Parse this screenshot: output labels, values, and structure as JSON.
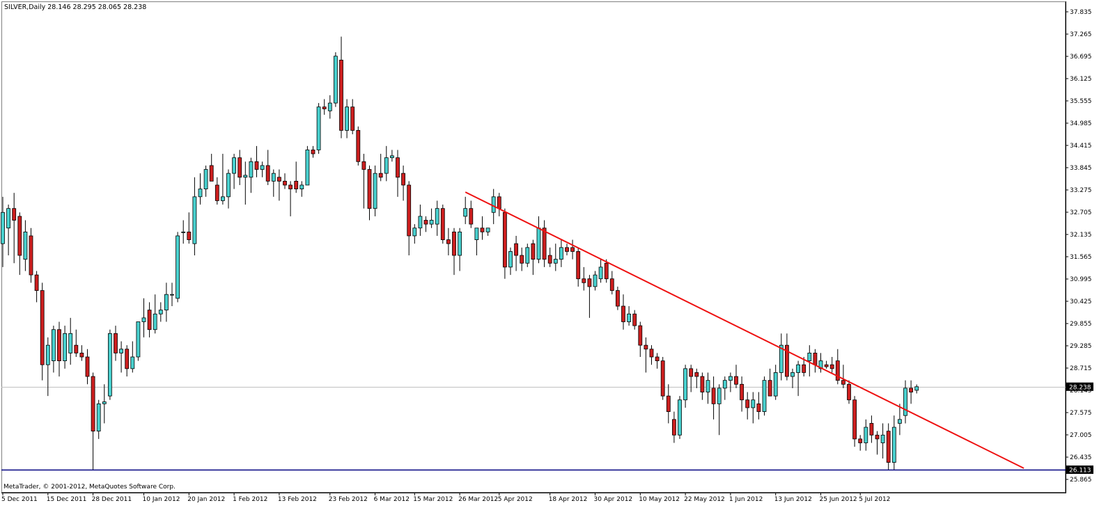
{
  "window": {
    "symbol_line": "SILVER,Daily  28.146 28.295 28.065 28.238",
    "copyright": "MetaTrader, © 2001-2012, MetaQuotes Software Corp."
  },
  "colors": {
    "background": "#ffffff",
    "bull_body": "#49d1cf",
    "bear_body": "#cc1f1f",
    "wick": "#000000",
    "trendline": "#ee1111",
    "support_line": "#000080",
    "bid_line": "#c0c0c0",
    "price_label_bg": "#000000",
    "price_label_text": "#ffffff"
  },
  "chart_data": {
    "type": "candlestick",
    "symbol": "SILVER",
    "timeframe": "Daily",
    "last_bar": {
      "open": 28.146,
      "high": 28.295,
      "low": 28.065,
      "close": 28.238
    },
    "ylim": [
      25.865,
      37.97
    ],
    "y_ticks": [
      "37.835",
      "37.265",
      "36.695",
      "36.125",
      "35.555",
      "34.985",
      "34.415",
      "33.845",
      "33.275",
      "32.705",
      "32.135",
      "31.565",
      "30.995",
      "30.425",
      "29.855",
      "29.285",
      "28.715",
      "28.145",
      "27.575",
      "27.005",
      "26.435",
      "25.865"
    ],
    "x_tick_labels": [
      "5 Dec 2011",
      "15 Dec 2011",
      "28 Dec 2011",
      "10 Jan 2012",
      "20 Jan 2012",
      "1 Feb 2012",
      "13 Feb 2012",
      "23 Feb 2012",
      "6 Mar 2012",
      "15 Mar 2012",
      "26 Mar 2012",
      "5 Apr 2012",
      "18 Apr 2012",
      "30 Apr 2012",
      "10 May 2012",
      "22 May 2012",
      "1 Jun 2012",
      "13 Jun 2012",
      "25 Jun 2012",
      "5 Jul 2012"
    ],
    "x_tick_bar_index": [
      0,
      8,
      16,
      25,
      33,
      41,
      49,
      58,
      66,
      73,
      81,
      88,
      97,
      105,
      113,
      121,
      129,
      137,
      145,
      152
    ],
    "current_price": {
      "value": 28.238,
      "label": "28.238"
    },
    "support_level": {
      "value": 26.113,
      "label": "26.113"
    },
    "trendline": {
      "from": {
        "bar": 82,
        "price": 33.22
      },
      "to": {
        "bar": 181,
        "price": 26.15
      }
    },
    "bars": [
      {
        "o": 31.9,
        "h": 33.1,
        "l": 31.3,
        "c": 32.7
      },
      {
        "o": 32.3,
        "h": 32.9,
        "l": 31.6,
        "c": 32.8
      },
      {
        "o": 32.8,
        "h": 33.2,
        "l": 31.4,
        "c": 32.5
      },
      {
        "o": 32.6,
        "h": 32.7,
        "l": 31.1,
        "c": 31.6
      },
      {
        "o": 31.5,
        "h": 32.5,
        "l": 31.2,
        "c": 32.2
      },
      {
        "o": 32.1,
        "h": 32.3,
        "l": 30.9,
        "c": 31.1
      },
      {
        "o": 31.1,
        "h": 31.2,
        "l": 30.4,
        "c": 30.7
      },
      {
        "o": 30.7,
        "h": 30.9,
        "l": 28.4,
        "c": 28.8
      },
      {
        "o": 28.8,
        "h": 29.5,
        "l": 28.0,
        "c": 29.3
      },
      {
        "o": 28.9,
        "h": 29.8,
        "l": 28.6,
        "c": 29.7
      },
      {
        "o": 29.7,
        "h": 29.9,
        "l": 28.5,
        "c": 28.9
      },
      {
        "o": 28.9,
        "h": 29.8,
        "l": 28.7,
        "c": 29.6
      },
      {
        "o": 29.1,
        "h": 30.0,
        "l": 28.8,
        "c": 29.6
      },
      {
        "o": 29.3,
        "h": 29.7,
        "l": 29.0,
        "c": 29.1
      },
      {
        "o": 29.1,
        "h": 29.3,
        "l": 28.9,
        "c": 29.0
      },
      {
        "o": 29.0,
        "h": 29.2,
        "l": 28.3,
        "c": 28.5
      },
      {
        "o": 28.5,
        "h": 28.6,
        "l": 26.1,
        "c": 27.1
      },
      {
        "o": 27.1,
        "h": 27.9,
        "l": 26.9,
        "c": 27.8
      },
      {
        "o": 27.8,
        "h": 28.3,
        "l": 27.3,
        "c": 27.85
      },
      {
        "o": 28.0,
        "h": 29.7,
        "l": 27.9,
        "c": 29.6
      },
      {
        "o": 29.6,
        "h": 29.8,
        "l": 28.9,
        "c": 29.1
      },
      {
        "o": 29.1,
        "h": 29.4,
        "l": 28.6,
        "c": 29.2
      },
      {
        "o": 29.2,
        "h": 29.3,
        "l": 28.5,
        "c": 28.7
      },
      {
        "o": 28.7,
        "h": 29.4,
        "l": 28.6,
        "c": 29.0
      },
      {
        "o": 29.0,
        "h": 29.9,
        "l": 28.9,
        "c": 29.9
      },
      {
        "o": 29.9,
        "h": 30.5,
        "l": 29.5,
        "c": 30.0
      },
      {
        "o": 30.2,
        "h": 30.4,
        "l": 29.5,
        "c": 29.7
      },
      {
        "o": 29.7,
        "h": 30.6,
        "l": 29.6,
        "c": 30.1
      },
      {
        "o": 30.1,
        "h": 30.4,
        "l": 29.9,
        "c": 30.2
      },
      {
        "o": 30.2,
        "h": 30.9,
        "l": 29.9,
        "c": 30.6
      },
      {
        "o": 30.6,
        "h": 30.9,
        "l": 30.3,
        "c": 30.6
      },
      {
        "o": 30.5,
        "h": 32.2,
        "l": 30.4,
        "c": 32.1
      },
      {
        "o": 32.2,
        "h": 32.5,
        "l": 31.9,
        "c": 32.2
      },
      {
        "o": 32.2,
        "h": 32.7,
        "l": 31.9,
        "c": 32.0
      },
      {
        "o": 31.9,
        "h": 33.6,
        "l": 31.6,
        "c": 33.1
      },
      {
        "o": 33.1,
        "h": 33.7,
        "l": 32.9,
        "c": 33.3
      },
      {
        "o": 33.3,
        "h": 33.9,
        "l": 33.1,
        "c": 33.8
      },
      {
        "o": 33.9,
        "h": 34.2,
        "l": 33.6,
        "c": 33.5
      },
      {
        "o": 33.4,
        "h": 33.6,
        "l": 32.9,
        "c": 33.0
      },
      {
        "o": 33.0,
        "h": 34.2,
        "l": 32.9,
        "c": 33.1
      },
      {
        "o": 33.1,
        "h": 33.8,
        "l": 32.8,
        "c": 33.7
      },
      {
        "o": 33.7,
        "h": 34.2,
        "l": 33.3,
        "c": 34.1
      },
      {
        "o": 34.1,
        "h": 34.3,
        "l": 33.4,
        "c": 33.6
      },
      {
        "o": 33.6,
        "h": 34.0,
        "l": 32.9,
        "c": 33.65
      },
      {
        "o": 33.6,
        "h": 34.1,
        "l": 33.2,
        "c": 34.0
      },
      {
        "o": 34.0,
        "h": 34.4,
        "l": 33.6,
        "c": 33.8
      },
      {
        "o": 33.8,
        "h": 34.0,
        "l": 33.6,
        "c": 33.9
      },
      {
        "o": 33.9,
        "h": 34.3,
        "l": 33.4,
        "c": 33.5
      },
      {
        "o": 33.5,
        "h": 33.8,
        "l": 33.1,
        "c": 33.7
      },
      {
        "o": 33.6,
        "h": 33.8,
        "l": 33.0,
        "c": 33.5
      },
      {
        "o": 33.5,
        "h": 33.7,
        "l": 33.3,
        "c": 33.4
      },
      {
        "o": 33.4,
        "h": 33.5,
        "l": 32.6,
        "c": 33.3
      },
      {
        "o": 33.5,
        "h": 34.0,
        "l": 33.2,
        "c": 33.3
      },
      {
        "o": 33.3,
        "h": 33.5,
        "l": 33.1,
        "c": 33.4
      },
      {
        "o": 33.4,
        "h": 34.4,
        "l": 33.4,
        "c": 34.3
      },
      {
        "o": 34.3,
        "h": 34.4,
        "l": 34.1,
        "c": 34.2
      },
      {
        "o": 34.3,
        "h": 35.5,
        "l": 34.2,
        "c": 35.4
      },
      {
        "o": 35.4,
        "h": 35.6,
        "l": 35.2,
        "c": 35.35
      },
      {
        "o": 35.3,
        "h": 35.7,
        "l": 35.1,
        "c": 35.5
      },
      {
        "o": 35.5,
        "h": 36.8,
        "l": 35.4,
        "c": 36.7
      },
      {
        "o": 36.6,
        "h": 37.2,
        "l": 34.6,
        "c": 34.8
      },
      {
        "o": 34.8,
        "h": 35.6,
        "l": 34.6,
        "c": 35.4
      },
      {
        "o": 35.4,
        "h": 35.6,
        "l": 34.7,
        "c": 34.8
      },
      {
        "o": 34.8,
        "h": 34.9,
        "l": 33.9,
        "c": 34.0
      },
      {
        "o": 34.0,
        "h": 34.2,
        "l": 32.8,
        "c": 33.8
      },
      {
        "o": 33.8,
        "h": 33.9,
        "l": 32.5,
        "c": 32.8
      },
      {
        "o": 32.8,
        "h": 33.9,
        "l": 32.6,
        "c": 33.7
      },
      {
        "o": 33.7,
        "h": 34.2,
        "l": 33.5,
        "c": 33.6
      },
      {
        "o": 33.7,
        "h": 34.4,
        "l": 33.5,
        "c": 34.1
      },
      {
        "o": 34.1,
        "h": 34.3,
        "l": 34.0,
        "c": 34.15
      },
      {
        "o": 34.1,
        "h": 34.3,
        "l": 33.1,
        "c": 33.6
      },
      {
        "o": 33.7,
        "h": 33.9,
        "l": 33.0,
        "c": 33.4
      },
      {
        "o": 33.4,
        "h": 33.5,
        "l": 31.6,
        "c": 32.1
      },
      {
        "o": 32.1,
        "h": 32.4,
        "l": 31.9,
        "c": 32.3
      },
      {
        "o": 32.3,
        "h": 32.9,
        "l": 32.1,
        "c": 32.6
      },
      {
        "o": 32.5,
        "h": 32.6,
        "l": 32.2,
        "c": 32.4
      },
      {
        "o": 32.4,
        "h": 32.8,
        "l": 32.3,
        "c": 32.5
      },
      {
        "o": 32.4,
        "h": 33.0,
        "l": 32.1,
        "c": 32.8
      },
      {
        "o": 32.8,
        "h": 32.9,
        "l": 31.9,
        "c": 32.0
      },
      {
        "o": 32.0,
        "h": 32.3,
        "l": 31.6,
        "c": 31.9
      },
      {
        "o": 32.2,
        "h": 32.3,
        "l": 31.1,
        "c": 31.6
      },
      {
        "o": 31.6,
        "h": 32.3,
        "l": 31.2,
        "c": 32.2
      },
      {
        "o": 32.6,
        "h": 33.1,
        "l": 32.4,
        "c": 32.8
      },
      {
        "o": 32.8,
        "h": 33.0,
        "l": 32.3,
        "c": 32.4
      },
      {
        "o": 32.0,
        "h": 32.3,
        "l": 31.6,
        "c": 32.3
      },
      {
        "o": 32.3,
        "h": 32.6,
        "l": 32.0,
        "c": 32.2
      },
      {
        "o": 32.2,
        "h": 32.3,
        "l": 32.1,
        "c": 32.3
      },
      {
        "o": 32.7,
        "h": 33.3,
        "l": 32.4,
        "c": 33.1
      },
      {
        "o": 33.1,
        "h": 33.2,
        "l": 32.6,
        "c": 32.8
      },
      {
        "o": 32.7,
        "h": 32.8,
        "l": 31.0,
        "c": 31.3
      },
      {
        "o": 31.3,
        "h": 31.8,
        "l": 31.1,
        "c": 31.7
      },
      {
        "o": 31.9,
        "h": 32.1,
        "l": 31.2,
        "c": 31.6
      },
      {
        "o": 31.6,
        "h": 31.8,
        "l": 31.2,
        "c": 31.4
      },
      {
        "o": 31.4,
        "h": 31.9,
        "l": 31.3,
        "c": 31.8
      },
      {
        "o": 31.9,
        "h": 32.0,
        "l": 31.1,
        "c": 31.5
      },
      {
        "o": 31.5,
        "h": 32.6,
        "l": 31.4,
        "c": 32.3
      },
      {
        "o": 32.3,
        "h": 32.5,
        "l": 31.3,
        "c": 31.5
      },
      {
        "o": 31.6,
        "h": 31.8,
        "l": 31.3,
        "c": 31.4
      },
      {
        "o": 31.4,
        "h": 31.9,
        "l": 31.2,
        "c": 31.5
      },
      {
        "o": 31.5,
        "h": 32.0,
        "l": 31.3,
        "c": 31.8
      },
      {
        "o": 31.8,
        "h": 31.9,
        "l": 31.6,
        "c": 31.7
      },
      {
        "o": 31.8,
        "h": 32.0,
        "l": 31.5,
        "c": 31.7
      },
      {
        "o": 31.7,
        "h": 31.8,
        "l": 30.8,
        "c": 31.0
      },
      {
        "o": 31.0,
        "h": 31.3,
        "l": 30.7,
        "c": 30.9
      },
      {
        "o": 31.0,
        "h": 31.1,
        "l": 30.0,
        "c": 30.8
      },
      {
        "o": 30.8,
        "h": 31.2,
        "l": 30.7,
        "c": 31.1
      },
      {
        "o": 31.0,
        "h": 31.5,
        "l": 30.9,
        "c": 31.3
      },
      {
        "o": 31.4,
        "h": 31.5,
        "l": 30.9,
        "c": 31.0
      },
      {
        "o": 31.0,
        "h": 31.2,
        "l": 30.6,
        "c": 30.7
      },
      {
        "o": 30.7,
        "h": 30.8,
        "l": 30.2,
        "c": 30.3
      },
      {
        "o": 30.3,
        "h": 30.6,
        "l": 29.7,
        "c": 29.9
      },
      {
        "o": 29.9,
        "h": 30.3,
        "l": 29.8,
        "c": 30.1
      },
      {
        "o": 30.1,
        "h": 30.2,
        "l": 29.7,
        "c": 29.8
      },
      {
        "o": 29.8,
        "h": 29.9,
        "l": 29.0,
        "c": 29.3
      },
      {
        "o": 29.3,
        "h": 29.5,
        "l": 28.6,
        "c": 29.2
      },
      {
        "o": 29.2,
        "h": 29.3,
        "l": 28.8,
        "c": 29.0
      },
      {
        "o": 29.0,
        "h": 29.1,
        "l": 28.7,
        "c": 28.9
      },
      {
        "o": 28.9,
        "h": 29.0,
        "l": 27.9,
        "c": 28.0
      },
      {
        "o": 28.0,
        "h": 28.3,
        "l": 27.3,
        "c": 27.6
      },
      {
        "o": 27.4,
        "h": 27.6,
        "l": 26.8,
        "c": 27.0
      },
      {
        "o": 27.0,
        "h": 28.0,
        "l": 26.9,
        "c": 27.9
      },
      {
        "o": 27.9,
        "h": 28.8,
        "l": 27.7,
        "c": 28.7
      },
      {
        "o": 28.7,
        "h": 28.8,
        "l": 28.1,
        "c": 28.5
      },
      {
        "o": 28.6,
        "h": 28.7,
        "l": 28.2,
        "c": 28.5
      },
      {
        "o": 28.5,
        "h": 28.6,
        "l": 27.9,
        "c": 28.1
      },
      {
        "o": 28.1,
        "h": 28.6,
        "l": 27.8,
        "c": 28.4
      },
      {
        "o": 28.2,
        "h": 28.5,
        "l": 27.4,
        "c": 27.8
      },
      {
        "o": 27.8,
        "h": 28.3,
        "l": 27.0,
        "c": 28.2
      },
      {
        "o": 28.2,
        "h": 28.5,
        "l": 27.9,
        "c": 28.4
      },
      {
        "o": 28.4,
        "h": 28.6,
        "l": 28.1,
        "c": 28.5
      },
      {
        "o": 28.5,
        "h": 28.8,
        "l": 28.2,
        "c": 28.3
      },
      {
        "o": 28.3,
        "h": 28.5,
        "l": 27.6,
        "c": 27.9
      },
      {
        "o": 27.9,
        "h": 28.1,
        "l": 27.4,
        "c": 27.7
      },
      {
        "o": 27.7,
        "h": 28.1,
        "l": 27.3,
        "c": 27.9
      },
      {
        "o": 27.8,
        "h": 28.1,
        "l": 27.4,
        "c": 27.6
      },
      {
        "o": 27.6,
        "h": 28.5,
        "l": 27.5,
        "c": 28.4
      },
      {
        "o": 28.4,
        "h": 28.7,
        "l": 28.0,
        "c": 28.0
      },
      {
        "o": 28.0,
        "h": 28.8,
        "l": 27.9,
        "c": 28.6
      },
      {
        "o": 28.6,
        "h": 29.6,
        "l": 28.4,
        "c": 29.3
      },
      {
        "o": 29.3,
        "h": 29.6,
        "l": 28.4,
        "c": 28.5
      },
      {
        "o": 28.5,
        "h": 28.7,
        "l": 28.2,
        "c": 28.6
      },
      {
        "o": 28.6,
        "h": 28.9,
        "l": 28.0,
        "c": 28.8
      },
      {
        "o": 28.8,
        "h": 29.0,
        "l": 28.5,
        "c": 28.6
      },
      {
        "o": 28.9,
        "h": 29.3,
        "l": 28.5,
        "c": 29.1
      },
      {
        "o": 29.1,
        "h": 29.2,
        "l": 28.6,
        "c": 28.8
      },
      {
        "o": 28.7,
        "h": 29.1,
        "l": 28.6,
        "c": 28.9
      },
      {
        "o": 28.8,
        "h": 28.9,
        "l": 28.7,
        "c": 28.75
      },
      {
        "o": 28.8,
        "h": 29.0,
        "l": 28.6,
        "c": 28.7
      },
      {
        "o": 28.9,
        "h": 29.2,
        "l": 28.3,
        "c": 28.4
      },
      {
        "o": 28.4,
        "h": 28.8,
        "l": 28.2,
        "c": 28.3
      },
      {
        "o": 28.3,
        "h": 28.4,
        "l": 27.8,
        "c": 27.9
      },
      {
        "o": 27.9,
        "h": 28.0,
        "l": 26.7,
        "c": 26.9
      },
      {
        "o": 26.9,
        "h": 27.0,
        "l": 26.6,
        "c": 26.8
      },
      {
        "o": 26.8,
        "h": 27.4,
        "l": 26.6,
        "c": 27.2
      },
      {
        "o": 27.3,
        "h": 27.5,
        "l": 26.8,
        "c": 27.0
      },
      {
        "o": 27.0,
        "h": 27.1,
        "l": 26.5,
        "c": 26.9
      },
      {
        "o": 26.8,
        "h": 27.3,
        "l": 26.4,
        "c": 27.0
      },
      {
        "o": 27.1,
        "h": 27.3,
        "l": 26.1,
        "c": 26.3
      },
      {
        "o": 26.3,
        "h": 27.5,
        "l": 26.1,
        "c": 27.2
      },
      {
        "o": 27.3,
        "h": 27.8,
        "l": 27.0,
        "c": 27.4
      },
      {
        "o": 27.5,
        "h": 28.4,
        "l": 27.3,
        "c": 28.2
      },
      {
        "o": 28.2,
        "h": 28.4,
        "l": 27.8,
        "c": 28.1
      },
      {
        "o": 28.146,
        "h": 28.295,
        "l": 28.065,
        "c": 28.238
      }
    ]
  }
}
